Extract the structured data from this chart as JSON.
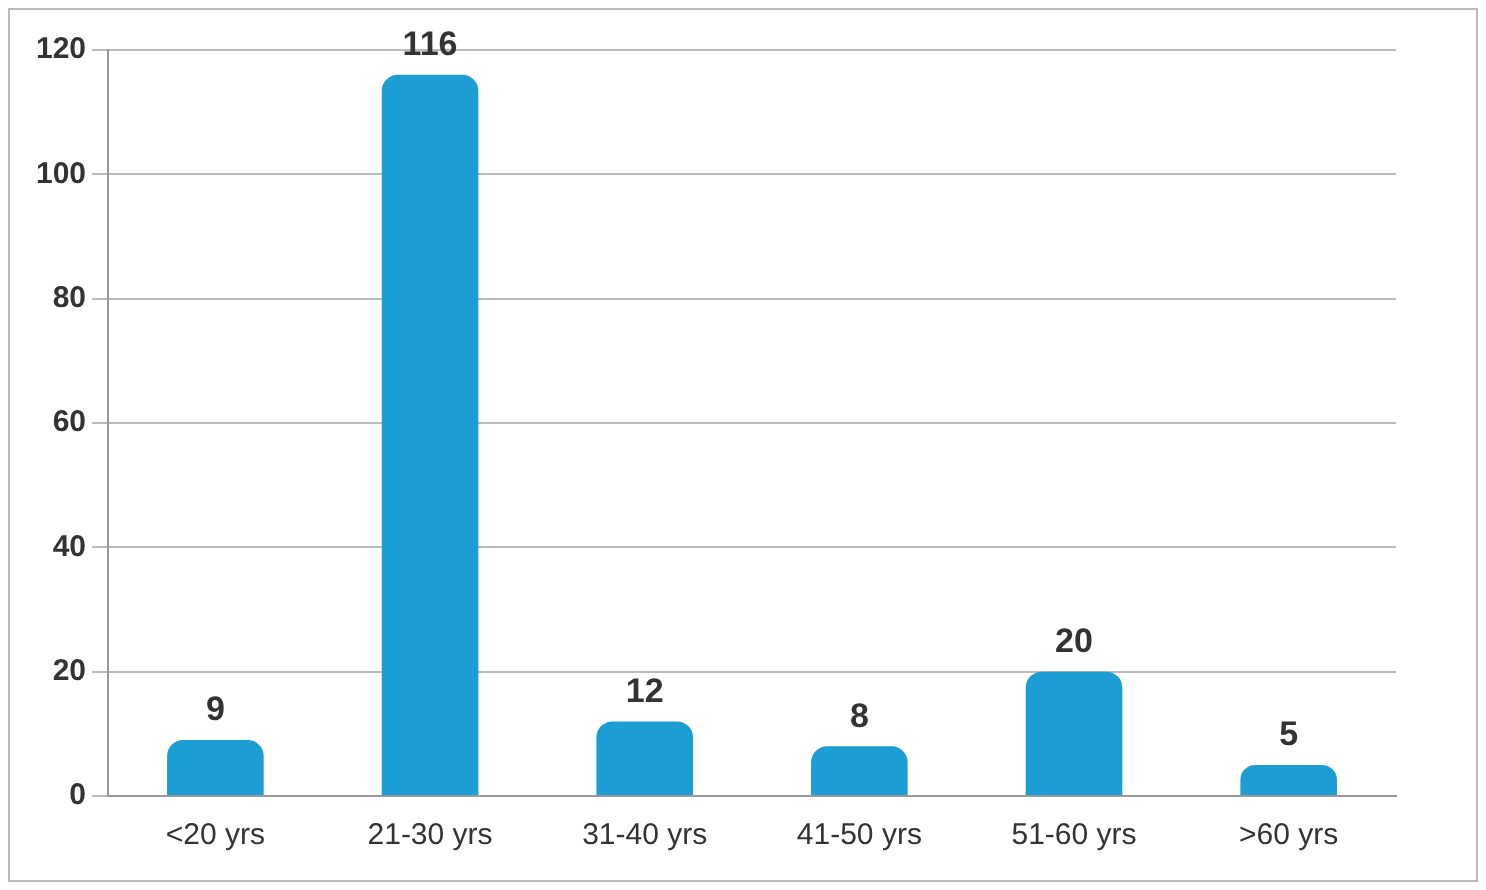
{
  "chart_data": {
    "type": "bar",
    "categories": [
      "<20 yrs",
      "21-30 yrs",
      "31-40 yrs",
      "41-50 yrs",
      "51-60 yrs",
      ">60 yrs"
    ],
    "values": [
      9,
      116,
      12,
      8,
      20,
      5
    ],
    "color": "#1c9dd3",
    "ylim": [
      0,
      120
    ],
    "yticks": [
      0,
      20,
      40,
      60,
      80,
      100,
      120
    ],
    "grid": "y",
    "data_labels": true
  }
}
